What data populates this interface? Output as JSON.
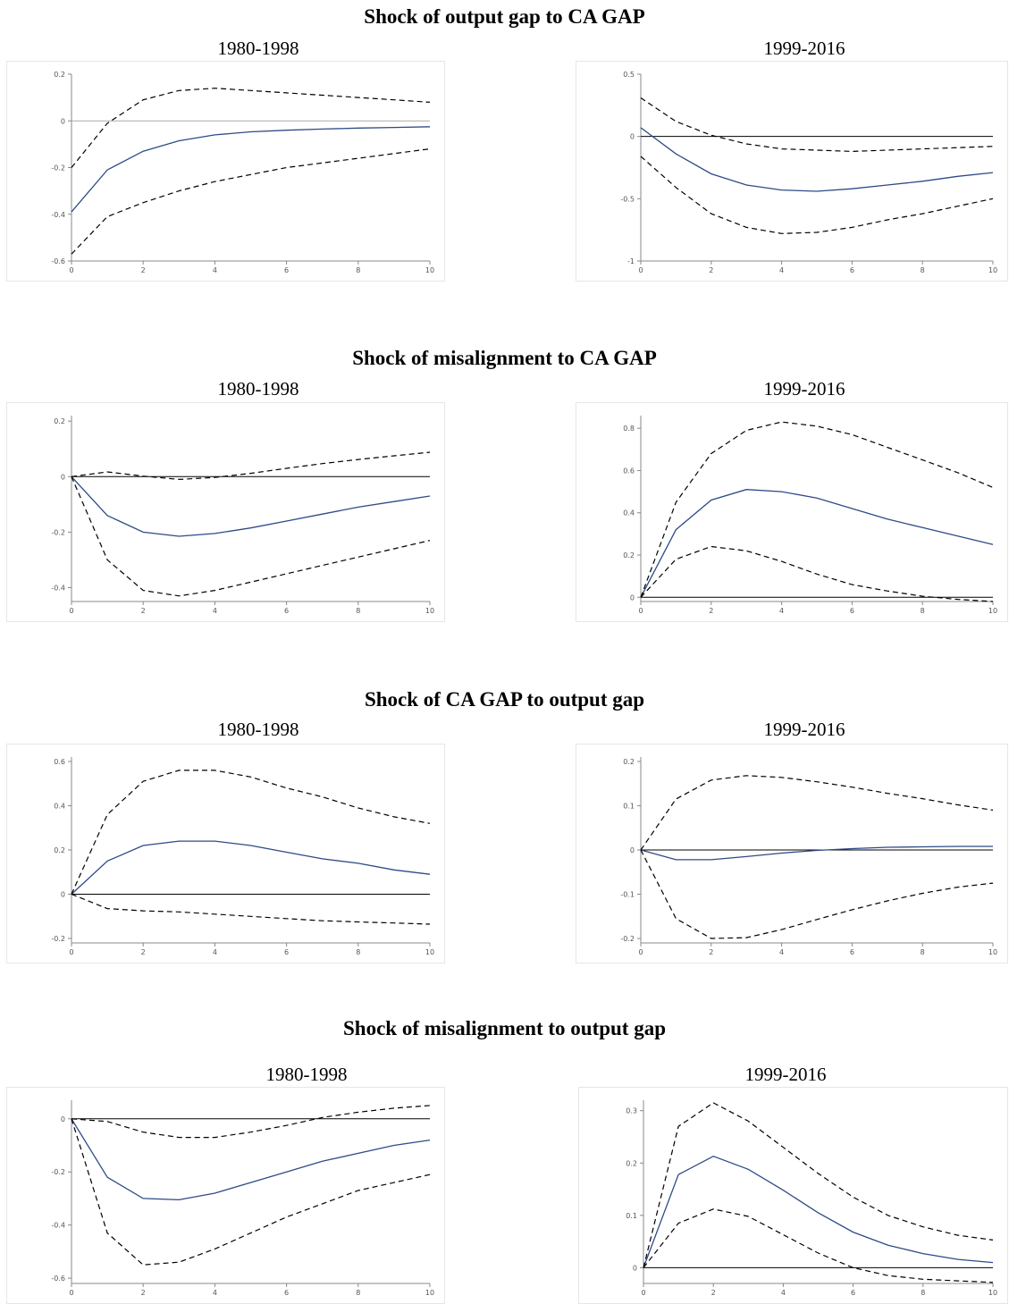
{
  "sections": [
    {
      "title": "Shock of output gap to CA GAP",
      "left_label": "1980-1998",
      "right_label": "1999-2016"
    },
    {
      "title": "Shock of misalignment to CA GAP",
      "left_label": "1980-1998",
      "right_label": "1999-2016"
    },
    {
      "title": "Shock of CA GAP to output gap",
      "left_label": "1980-1998",
      "right_label": "1999-2016"
    },
    {
      "title": "Shock of misalignment to output gap",
      "left_label": "1980-1998",
      "right_label": "1999-2016"
    }
  ],
  "chart_data": [
    {
      "type": "line",
      "xlabel": "",
      "ylabel": "",
      "x": [
        0,
        1,
        2,
        3,
        4,
        5,
        6,
        7,
        8,
        9,
        10
      ],
      "xticks": [
        0,
        2,
        4,
        6,
        8,
        10
      ],
      "xlim": [
        0,
        10
      ],
      "ylim": [
        -0.6,
        0.2
      ],
      "yticks": [
        0.2,
        0,
        -0.2,
        -0.4,
        -0.6
      ],
      "yticklabels": [
        "0.2",
        "0",
        "-0.2",
        "-0.4",
        "-0.6"
      ],
      "zero_line_color": "#aaaaaa",
      "series": [
        {
          "style": "solid",
          "values": [
            -0.39,
            -0.21,
            -0.13,
            -0.085,
            -0.06,
            -0.047,
            -0.04,
            -0.035,
            -0.031,
            -0.028,
            -0.025
          ]
        },
        {
          "style": "dashed",
          "values": [
            -0.2,
            -0.01,
            0.09,
            0.13,
            0.14,
            0.13,
            0.12,
            0.11,
            0.1,
            0.09,
            0.08
          ]
        },
        {
          "style": "dashed",
          "values": [
            -0.57,
            -0.41,
            -0.35,
            -0.3,
            -0.26,
            -0.23,
            -0.2,
            -0.18,
            -0.16,
            -0.14,
            -0.12
          ]
        }
      ]
    },
    {
      "type": "line",
      "xlabel": "",
      "ylabel": "",
      "x": [
        0,
        1,
        2,
        3,
        4,
        5,
        6,
        7,
        8,
        9,
        10
      ],
      "xticks": [
        0,
        2,
        4,
        6,
        8,
        10
      ],
      "xlim": [
        0,
        10
      ],
      "ylim": [
        -1,
        0.5
      ],
      "yticks": [
        0.5,
        0,
        -0.5,
        -1
      ],
      "yticklabels": [
        "0.5",
        "0",
        "-0.5",
        "-1"
      ],
      "zero_line_color": "#000000",
      "series": [
        {
          "style": "solid",
          "values": [
            0.07,
            -0.14,
            -0.3,
            -0.39,
            -0.43,
            -0.44,
            -0.42,
            -0.39,
            -0.36,
            -0.32,
            -0.29
          ]
        },
        {
          "style": "dashed",
          "values": [
            0.31,
            0.12,
            0.01,
            -0.06,
            -0.1,
            -0.11,
            -0.12,
            -0.11,
            -0.1,
            -0.09,
            -0.08
          ]
        },
        {
          "style": "dashed",
          "values": [
            -0.16,
            -0.41,
            -0.62,
            -0.73,
            -0.78,
            -0.77,
            -0.73,
            -0.67,
            -0.62,
            -0.56,
            -0.5
          ]
        }
      ]
    },
    {
      "type": "line",
      "xlabel": "",
      "ylabel": "",
      "x": [
        0,
        1,
        2,
        3,
        4,
        5,
        6,
        7,
        8,
        9,
        10
      ],
      "xticks": [
        0,
        2,
        4,
        6,
        8,
        10
      ],
      "xlim": [
        0,
        10
      ],
      "ylim": [
        -0.45,
        0.22
      ],
      "yticks": [
        0.2,
        0,
        -0.2,
        -0.4
      ],
      "yticklabels": [
        "0.2",
        "0",
        "-0.2",
        "-0.4"
      ],
      "zero_line_color": "#000000",
      "series": [
        {
          "style": "solid",
          "values": [
            0,
            -0.14,
            -0.2,
            -0.215,
            -0.205,
            -0.185,
            -0.16,
            -0.135,
            -0.11,
            -0.09,
            -0.07
          ]
        },
        {
          "style": "dashed",
          "values": [
            0,
            0.017,
            0.002,
            -0.01,
            -0.003,
            0.012,
            0.03,
            0.047,
            0.062,
            0.075,
            0.088
          ]
        },
        {
          "style": "dashed",
          "values": [
            0,
            -0.3,
            -0.41,
            -0.43,
            -0.41,
            -0.38,
            -0.35,
            -0.32,
            -0.29,
            -0.26,
            -0.23
          ]
        }
      ]
    },
    {
      "type": "line",
      "xlabel": "",
      "ylabel": "",
      "x": [
        0,
        1,
        2,
        3,
        4,
        5,
        6,
        7,
        8,
        9,
        10
      ],
      "xticks": [
        0,
        2,
        4,
        6,
        8,
        10
      ],
      "xlim": [
        0,
        10
      ],
      "ylim": [
        -0.02,
        0.86
      ],
      "yticks": [
        0.8,
        0.6,
        0.4,
        0.2,
        0
      ],
      "yticklabels": [
        "0.8",
        "0.6",
        "0.4",
        "0.2",
        "0"
      ],
      "zero_line_color": "#000000",
      "series": [
        {
          "style": "solid",
          "values": [
            0,
            0.32,
            0.46,
            0.51,
            0.5,
            0.47,
            0.42,
            0.37,
            0.33,
            0.29,
            0.25
          ]
        },
        {
          "style": "dashed",
          "values": [
            0,
            0.45,
            0.68,
            0.79,
            0.83,
            0.81,
            0.77,
            0.71,
            0.65,
            0.59,
            0.52
          ]
        },
        {
          "style": "dashed",
          "values": [
            0,
            0.18,
            0.24,
            0.22,
            0.17,
            0.11,
            0.06,
            0.03,
            0.005,
            -0.01,
            -0.02
          ]
        }
      ]
    },
    {
      "type": "line",
      "xlabel": "",
      "ylabel": "",
      "x": [
        0,
        1,
        2,
        3,
        4,
        5,
        6,
        7,
        8,
        9,
        10
      ],
      "xticks": [
        0,
        2,
        4,
        6,
        8,
        10
      ],
      "xlim": [
        0,
        10
      ],
      "ylim": [
        -0.22,
        0.62
      ],
      "yticks": [
        0.6,
        0.4,
        0.2,
        0,
        -0.2
      ],
      "yticklabels": [
        "0.6",
        "0.4",
        "0.2",
        "0",
        "-0.2"
      ],
      "zero_line_color": "#000000",
      "series": [
        {
          "style": "solid",
          "values": [
            0,
            0.15,
            0.22,
            0.24,
            0.24,
            0.22,
            0.19,
            0.16,
            0.14,
            0.11,
            0.09
          ]
        },
        {
          "style": "dashed",
          "values": [
            0,
            0.36,
            0.51,
            0.56,
            0.56,
            0.53,
            0.48,
            0.44,
            0.39,
            0.35,
            0.32
          ]
        },
        {
          "style": "dashed",
          "values": [
            0,
            -0.065,
            -0.075,
            -0.08,
            -0.09,
            -0.1,
            -0.11,
            -0.12,
            -0.125,
            -0.13,
            -0.135
          ]
        }
      ]
    },
    {
      "type": "line",
      "xlabel": "",
      "ylabel": "",
      "x": [
        0,
        1,
        2,
        3,
        4,
        5,
        6,
        7,
        8,
        9,
        10
      ],
      "xticks": [
        0,
        2,
        4,
        6,
        8,
        10
      ],
      "xlim": [
        0,
        10
      ],
      "ylim": [
        -0.21,
        0.21
      ],
      "yticks": [
        0.2,
        0.1,
        0,
        -0.1,
        -0.2
      ],
      "yticklabels": [
        "0.2",
        "0.1",
        "0",
        "-0.1",
        "-0.2"
      ],
      "zero_line_color": "#000000",
      "series": [
        {
          "style": "solid",
          "values": [
            0,
            -0.022,
            -0.022,
            -0.015,
            -0.007,
            -0.001,
            0.003,
            0.006,
            0.007,
            0.008,
            0.008
          ]
        },
        {
          "style": "dashed",
          "values": [
            0,
            0.115,
            0.158,
            0.168,
            0.164,
            0.154,
            0.142,
            0.128,
            0.116,
            0.102,
            0.09
          ]
        },
        {
          "style": "dashed",
          "values": [
            0,
            -0.155,
            -0.2,
            -0.198,
            -0.18,
            -0.157,
            -0.135,
            -0.115,
            -0.098,
            -0.084,
            -0.075
          ]
        }
      ]
    },
    {
      "type": "line",
      "xlabel": "",
      "ylabel": "",
      "x": [
        0,
        1,
        2,
        3,
        4,
        5,
        6,
        7,
        8,
        9,
        10
      ],
      "xticks": [
        0,
        2,
        4,
        6,
        8,
        10
      ],
      "xlim": [
        0,
        10
      ],
      "ylim": [
        -0.62,
        0.07
      ],
      "yticks": [
        0,
        -0.2,
        -0.4,
        -0.6
      ],
      "yticklabels": [
        "0",
        "-0.2",
        "-0.4",
        "-0.6"
      ],
      "zero_line_color": "#000000",
      "series": [
        {
          "style": "solid",
          "values": [
            0,
            -0.22,
            -0.3,
            -0.305,
            -0.28,
            -0.24,
            -0.2,
            -0.16,
            -0.13,
            -0.1,
            -0.08
          ]
        },
        {
          "style": "dashed",
          "values": [
            0,
            -0.01,
            -0.05,
            -0.07,
            -0.07,
            -0.05,
            -0.025,
            0.005,
            0.025,
            0.04,
            0.05
          ]
        },
        {
          "style": "dashed",
          "values": [
            0,
            -0.43,
            -0.55,
            -0.54,
            -0.49,
            -0.43,
            -0.37,
            -0.32,
            -0.27,
            -0.24,
            -0.21
          ]
        }
      ]
    },
    {
      "type": "line",
      "xlabel": "",
      "ylabel": "",
      "x": [
        0,
        1,
        2,
        3,
        4,
        5,
        6,
        7,
        8,
        9,
        10
      ],
      "xticks": [
        0,
        2,
        4,
        6,
        8,
        10
      ],
      "xlim": [
        0,
        10
      ],
      "ylim": [
        -0.03,
        0.32
      ],
      "yticks": [
        0.3,
        0.2,
        0.1,
        0
      ],
      "yticklabels": [
        "0.3",
        "0.2",
        "0.1",
        "0"
      ],
      "zero_line_color": "#000000",
      "series": [
        {
          "style": "solid",
          "values": [
            0,
            0.178,
            0.213,
            0.188,
            0.148,
            0.105,
            0.068,
            0.043,
            0.027,
            0.016,
            0.01
          ]
        },
        {
          "style": "dashed",
          "values": [
            0,
            0.27,
            0.315,
            0.28,
            0.23,
            0.18,
            0.135,
            0.1,
            0.078,
            0.062,
            0.053
          ]
        },
        {
          "style": "dashed",
          "values": [
            0,
            0.085,
            0.112,
            0.098,
            0.063,
            0.028,
            0.0,
            -0.015,
            -0.022,
            -0.025,
            -0.028
          ]
        }
      ]
    }
  ]
}
